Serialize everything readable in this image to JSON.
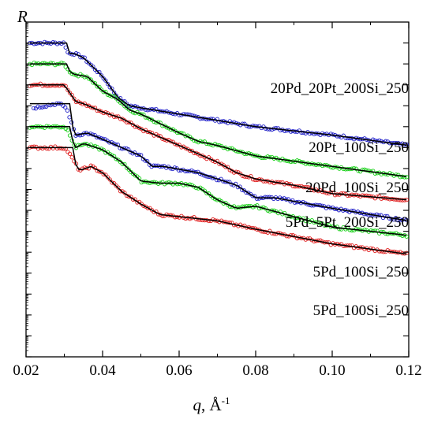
{
  "chart_data": {
    "type": "scatter",
    "ylabel": "R",
    "xlabel_var": "q",
    "xlabel_unit": ", Å",
    "xlabel_exp": "-1",
    "x_ticks": [
      "0.02",
      "0.04",
      "0.06",
      "0.08",
      "0.10",
      "0.12"
    ],
    "xlim": [
      0.02,
      0.12
    ],
    "y_scale": "log (offset curves, no numeric tick labels)",
    "y_decades": 16,
    "grid": false,
    "colors": {
      "blue": "#2020c8",
      "green": "#18d018",
      "red": "#e02020",
      "fit": "#000000"
    },
    "series": [
      {
        "name": "20Pd_20Pt_200Si_250",
        "color": "blue",
        "plateau": 15.0,
        "qc": 0.0307,
        "points": [
          [
            0.021,
            15.0
          ],
          [
            0.03,
            15.0
          ],
          [
            0.031,
            14.5
          ],
          [
            0.0325,
            14.5
          ],
          [
            0.035,
            14.3
          ],
          [
            0.04,
            13.4
          ],
          [
            0.044,
            12.4
          ],
          [
            0.047,
            12.0
          ],
          [
            0.05,
            11.9
          ],
          [
            0.06,
            11.6
          ],
          [
            0.08,
            11.0
          ],
          [
            0.1,
            10.6
          ],
          [
            0.12,
            10.1
          ]
        ]
      },
      {
        "name": "20Pt_100Si_250",
        "color": "green",
        "plateau": 14.0,
        "qc": 0.0307,
        "points": [
          [
            0.021,
            14.0
          ],
          [
            0.03,
            14.0
          ],
          [
            0.031,
            13.7
          ],
          [
            0.0325,
            13.5
          ],
          [
            0.036,
            13.4
          ],
          [
            0.04,
            12.7
          ],
          [
            0.044,
            12.3
          ],
          [
            0.047,
            11.8
          ],
          [
            0.05,
            11.6
          ],
          [
            0.06,
            10.7
          ],
          [
            0.065,
            10.3
          ],
          [
            0.07,
            10.1
          ],
          [
            0.08,
            9.6
          ],
          [
            0.1,
            9.1
          ],
          [
            0.12,
            8.6
          ]
        ]
      },
      {
        "name": "20Pd_100Si_250",
        "color": "red",
        "plateau": 13.0,
        "qc": 0.0305,
        "points": [
          [
            0.021,
            13.0
          ],
          [
            0.03,
            13.0
          ],
          [
            0.0315,
            12.6
          ],
          [
            0.033,
            12.2
          ],
          [
            0.035,
            12.1
          ],
          [
            0.04,
            11.7
          ],
          [
            0.045,
            11.4
          ],
          [
            0.05,
            10.9
          ],
          [
            0.06,
            10.1
          ],
          [
            0.07,
            9.3
          ],
          [
            0.075,
            8.8
          ],
          [
            0.08,
            8.5
          ],
          [
            0.09,
            8.2
          ],
          [
            0.1,
            7.8
          ],
          [
            0.12,
            7.5
          ]
        ]
      },
      {
        "name": "5Pd_5Pt_200Si_250",
        "color": "blue",
        "plateau": 12.1,
        "qc": 0.0315,
        "points": [
          [
            0.022,
            11.9
          ],
          [
            0.025,
            12.0
          ],
          [
            0.028,
            12.1
          ],
          [
            0.03,
            12.0
          ],
          [
            0.031,
            11.7
          ],
          [
            0.032,
            11.1
          ],
          [
            0.033,
            10.6
          ],
          [
            0.036,
            10.7
          ],
          [
            0.04,
            10.4
          ],
          [
            0.045,
            10.0
          ],
          [
            0.05,
            9.6
          ],
          [
            0.053,
            9.1
          ],
          [
            0.056,
            9.1
          ],
          [
            0.065,
            8.8
          ],
          [
            0.075,
            8.2
          ],
          [
            0.08,
            7.6
          ],
          [
            0.085,
            7.6
          ],
          [
            0.1,
            7.1
          ],
          [
            0.12,
            6.5
          ]
        ]
      },
      {
        "name": "5Pd_100Si_250",
        "color": "green",
        "plateau": 11.0,
        "qc": 0.0316,
        "points": [
          [
            0.021,
            11.0
          ],
          [
            0.03,
            11.0
          ],
          [
            0.031,
            10.8
          ],
          [
            0.033,
            10.0
          ],
          [
            0.035,
            10.2
          ],
          [
            0.04,
            9.9
          ],
          [
            0.045,
            9.3
          ],
          [
            0.05,
            8.4
          ],
          [
            0.055,
            8.3
          ],
          [
            0.06,
            8.3
          ],
          [
            0.065,
            8.1
          ],
          [
            0.07,
            7.5
          ],
          [
            0.075,
            7.1
          ],
          [
            0.08,
            7.2
          ],
          [
            0.09,
            6.7
          ],
          [
            0.1,
            6.2
          ],
          [
            0.12,
            5.8
          ]
        ]
      },
      {
        "name": "5Pd_100Si_250",
        "color": "red",
        "plateau": 10.0,
        "qc": 0.0322,
        "points": [
          [
            0.021,
            10.0
          ],
          [
            0.03,
            10.0
          ],
          [
            0.031,
            9.8
          ],
          [
            0.033,
            9.2
          ],
          [
            0.034,
            8.9
          ],
          [
            0.037,
            9.1
          ],
          [
            0.04,
            8.8
          ],
          [
            0.045,
            7.9
          ],
          [
            0.05,
            7.3
          ],
          [
            0.055,
            6.8
          ],
          [
            0.06,
            6.7
          ],
          [
            0.07,
            6.5
          ],
          [
            0.08,
            6.1
          ],
          [
            0.1,
            5.4
          ],
          [
            0.12,
            4.9
          ]
        ]
      }
    ]
  }
}
